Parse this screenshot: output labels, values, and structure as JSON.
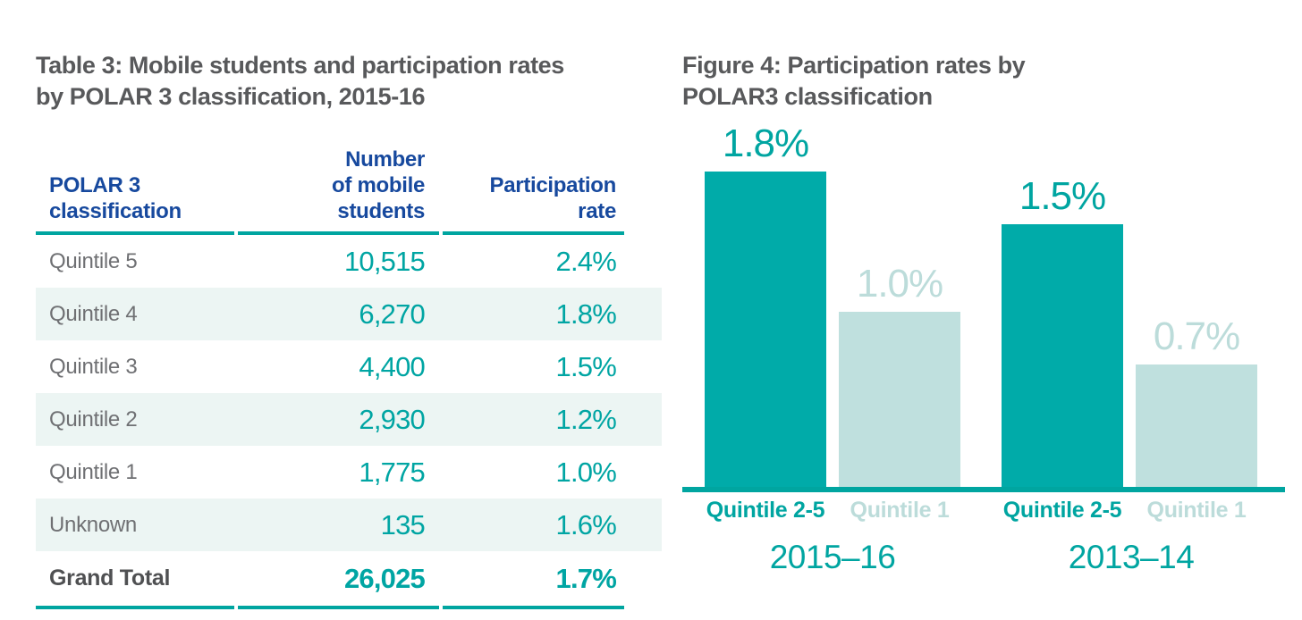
{
  "table_panel": {
    "title_line1": "Table 3: Mobile students and participation rates",
    "title_line2": "by POLAR 3 classification, 2015-16",
    "header": {
      "col1_lines": [
        "POLAR 3",
        "classification"
      ],
      "col2_lines": [
        "Number",
        "of mobile",
        "students"
      ],
      "col3_lines": [
        "Participation",
        "rate"
      ]
    },
    "rows": [
      {
        "label": "Quintile 5",
        "students": "10,515",
        "rate": "2.4%"
      },
      {
        "label": "Quintile 4",
        "students": "6,270",
        "rate": "1.8%"
      },
      {
        "label": "Quintile 3",
        "students": "4,400",
        "rate": "1.5%"
      },
      {
        "label": "Quintile 2",
        "students": "2,930",
        "rate": "1.2%"
      },
      {
        "label": "Quintile 1",
        "students": "1,775",
        "rate": "1.0%"
      },
      {
        "label": "Unknown",
        "students": "135",
        "rate": "1.6%"
      }
    ],
    "total_row": {
      "label": "Grand Total",
      "students": "26,025",
      "rate": "1.7%"
    },
    "colors": {
      "accent_teal": "#00A5A0",
      "number_teal": "#00A5A3",
      "header_navy": "#17499E",
      "zebra_row": "#ECF5F3",
      "label_gray": "#6F7073",
      "title_gray": "#58595B"
    }
  },
  "chart_data": {
    "type": "bar",
    "title_line1": "Figure 4: Participation rates by",
    "title_line2": "POLAR3 classification",
    "groups": [
      "2015–16",
      "2013–14"
    ],
    "categories": [
      "Quintile 2-5",
      "Quintile 1"
    ],
    "series": [
      {
        "name": "Quintile 2-5",
        "values": [
          1.8,
          1.5
        ]
      },
      {
        "name": "Quintile 1",
        "values": [
          1.0,
          0.7
        ]
      }
    ],
    "bars": [
      {
        "group": "2015–16",
        "category": "Quintile 2-5",
        "value": 1.8,
        "label": "1.8%",
        "bar_color": "#00ABA9",
        "text_color": "#00A5A1"
      },
      {
        "group": "2015–16",
        "category": "Quintile 1",
        "value": 1.0,
        "label": "1.0%",
        "bar_color": "#BFE0DE",
        "text_color": "#BCDCDA"
      },
      {
        "group": "2013–14",
        "category": "Quintile 2-5",
        "value": 1.5,
        "label": "1.5%",
        "bar_color": "#00ABA9",
        "text_color": "#00A5A1"
      },
      {
        "group": "2013–14",
        "category": "Quintile 1",
        "value": 0.7,
        "label": "0.7%",
        "bar_color": "#BFE0DE",
        "text_color": "#BCDCDA"
      }
    ],
    "ylim": [
      0,
      2.0
    ],
    "grid": false,
    "legend_position": "none",
    "axis_color": "#00A5A0",
    "data_labels_shown": true
  }
}
